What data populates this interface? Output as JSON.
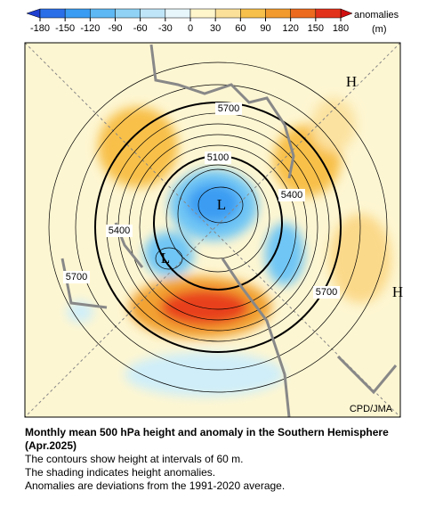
{
  "colorbar": {
    "ticks": [
      -180,
      -150,
      -120,
      -90,
      -60,
      -30,
      0,
      30,
      60,
      90,
      120,
      150,
      180
    ],
    "label": "anomalies",
    "unit": "(m)"
  },
  "map": {
    "contour_labels": [
      5700,
      5100,
      5400,
      5400,
      5700,
      5700
    ],
    "centers": [
      "H",
      "L",
      "L",
      "H"
    ],
    "credit": "CPD/JMA"
  },
  "caption": {
    "title": "Monthly mean 500 hPa height and anomaly in the Southern Hemisphere (Apr.2025)",
    "lines": [
      "The contours show height at intervals of 60 m.",
      "The shading indicates height anomalies.",
      "Anomalies are deviations from the 1991-2020 average."
    ]
  }
}
